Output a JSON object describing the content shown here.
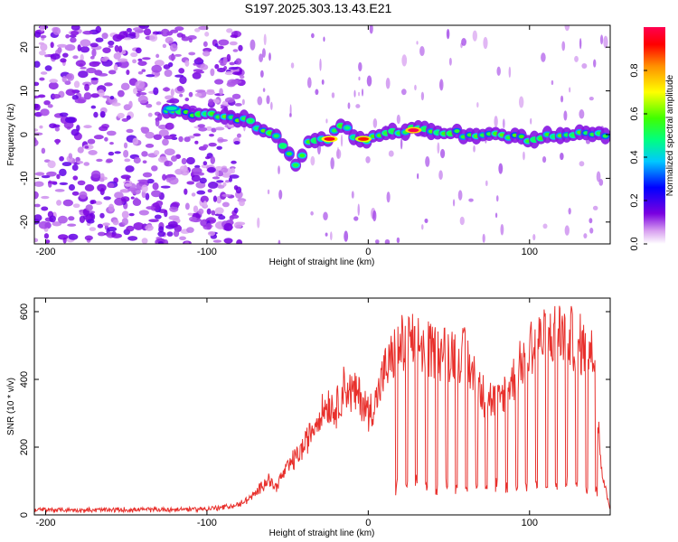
{
  "title": "S197.2025.303.13.43.E21",
  "chart_data": [
    {
      "type": "heatmap",
      "name": "spectrogram",
      "xlabel": "Height of straight line (km)",
      "ylabel": "Frequency (Hz)",
      "xlim": [
        -207,
        150
      ],
      "ylim": [
        -25,
        25
      ],
      "xticks": [
        -200,
        -100,
        0,
        100
      ],
      "yticks": [
        -20,
        -10,
        0,
        10,
        20
      ],
      "colorbar": {
        "label": "Normalized spectral amplitude",
        "range": [
          0,
          1
        ],
        "ticks": [
          0.0,
          0.2,
          0.4,
          0.6,
          0.8
        ]
      },
      "ridge": {
        "description_points_x": [
          -125,
          -90,
          -75,
          -60,
          -50,
          -45,
          -35,
          -25,
          -18,
          -10,
          -5,
          0,
          10,
          20,
          30,
          40,
          60,
          80,
          100,
          120,
          150
        ],
        "description_points_freq": [
          5,
          4,
          3,
          0,
          -3,
          -7,
          -1,
          -1,
          3,
          0,
          -1,
          -1,
          0,
          1,
          1,
          1,
          0,
          0,
          -1,
          0,
          0
        ]
      },
      "hotspots": [
        {
          "x": -24,
          "freq": -1,
          "amplitude": 0.95
        },
        {
          "x": -3,
          "freq": -1,
          "amplitude": 0.9
        },
        {
          "x": 28,
          "freq": 1,
          "amplitude": 1.0
        },
        {
          "x": -122,
          "freq": 6,
          "amplitude": 0.45
        }
      ]
    },
    {
      "type": "line",
      "name": "snr",
      "xlabel": "Height of straight line (km)",
      "ylabel": "SNR (10 * v/v)",
      "xlim": [
        -207,
        150
      ],
      "ylim": [
        0,
        640
      ],
      "xticks": [
        -200,
        -100,
        0,
        100
      ],
      "yticks": [
        0,
        200,
        400,
        600
      ],
      "color": "#e8302c",
      "series": [
        {
          "name": "SNR",
          "x": [
            -207,
            -180,
            -150,
            -120,
            -100,
            -90,
            -80,
            -70,
            -62,
            -58,
            -50,
            -40,
            -30,
            -25,
            -20,
            -15,
            -10,
            -5,
            0,
            5,
            10,
            15,
            20,
            30,
            40,
            50,
            60,
            70,
            80,
            90,
            100,
            110,
            120,
            130,
            140,
            145,
            150
          ],
          "y": [
            15,
            14,
            15,
            16,
            18,
            22,
            30,
            60,
            110,
            80,
            140,
            200,
            300,
            330,
            310,
            380,
            360,
            350,
            300,
            340,
            420,
            460,
            500,
            510,
            480,
            480,
            470,
            360,
            330,
            400,
            500,
            520,
            540,
            510,
            470,
            120,
            20
          ]
        }
      ]
    }
  ]
}
